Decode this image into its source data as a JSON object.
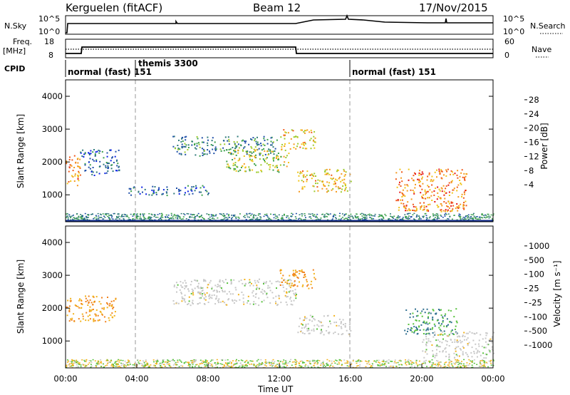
{
  "header": {
    "station": "Kerguelen (fitACF)",
    "beam": "Beam 12",
    "date": "17/Nov/2015"
  },
  "top_panels": {
    "nsky_label": "N.Sky",
    "nsky_ticks": [
      "10^5",
      "10^0"
    ],
    "nsearch_label": "N.Search",
    "nsearch_ticks": [
      "10^5",
      "10^0"
    ],
    "freq_label": "Freq.",
    "freq_unit": "[MHz]",
    "freq_ticks": [
      "18",
      "8"
    ],
    "nave_label": "Nave",
    "nave_ticks": [
      "60",
      "0"
    ],
    "cpid_label": "CPID",
    "cpid_segments": [
      {
        "label": "normal (fast) 151",
        "start_hour": 0
      },
      {
        "label": "themis 3300",
        "start_hour": 4
      },
      {
        "label": "normal (fast) 151",
        "start_hour": 16
      }
    ]
  },
  "x_axis": {
    "label": "Time UT",
    "ticks": [
      "00:00",
      "04:00",
      "08:00",
      "12:00",
      "16:00",
      "20:00",
      "00:00"
    ]
  },
  "chart_data": [
    {
      "type": "heatmap",
      "name": "power",
      "ylabel": "Slant Range [km]",
      "ylim": [
        180,
        4500
      ],
      "yticks": [
        "1000",
        "2000",
        "3000",
        "4000"
      ],
      "xlim_hours": [
        0,
        24
      ],
      "colorbar": {
        "label": "Power [dB]",
        "ticks": [
          "28",
          "24",
          "20",
          "16",
          "12",
          "8",
          "4"
        ],
        "colors": [
          "#0a22e6",
          "#1f4fa8",
          "#2f7a7a",
          "#3aa04a",
          "#9ecb2e",
          "#f0c419",
          "#f59a1f",
          "#f05a1a",
          "#e61414"
        ]
      },
      "features": [
        {
          "hours": [
            0.0,
            0.8
          ],
          "range_km": [
            1300,
            2300
          ],
          "level": 28
        },
        {
          "hours": [
            0.8,
            3.0
          ],
          "range_km": [
            1600,
            2400
          ],
          "level": 8
        },
        {
          "hours": [
            3.5,
            8.0
          ],
          "range_km": [
            1000,
            1300
          ],
          "level": 8
        },
        {
          "hours": [
            6.0,
            12.0
          ],
          "range_km": [
            2200,
            2800
          ],
          "level": 12
        },
        {
          "hours": [
            9.0,
            12.5
          ],
          "range_km": [
            1700,
            2400
          ],
          "level": 20
        },
        {
          "hours": [
            12.0,
            14.0
          ],
          "range_km": [
            2400,
            3000
          ],
          "level": 24
        },
        {
          "hours": [
            13.0,
            16.0
          ],
          "range_km": [
            1100,
            1800
          ],
          "level": 24
        },
        {
          "hours": [
            18.5,
            22.5
          ],
          "range_km": [
            500,
            1800
          ],
          "level": 28
        }
      ]
    },
    {
      "type": "heatmap",
      "name": "velocity",
      "ylabel": "Slant Range [km]",
      "ylim": [
        180,
        4500
      ],
      "yticks": [
        "1000",
        "2000",
        "3000",
        "4000"
      ],
      "xlim_hours": [
        0,
        24
      ],
      "colorbar": {
        "label": "Velocity [m s⁻¹]",
        "ticks": [
          "1000",
          "500",
          "100",
          "25",
          "-25",
          "-100",
          "-500",
          "-1000"
        ],
        "colors": [
          "#1a3fb0",
          "#2f6f8f",
          "#3a8f5f",
          "#55c13a",
          "#c8c8c8",
          "#f2b21c",
          "#f0821c",
          "#e64a12",
          "#e61414"
        ]
      },
      "features": [
        {
          "hours": [
            0.0,
            2.8
          ],
          "range_km": [
            1600,
            2400
          ],
          "velocity": -100
        },
        {
          "hours": [
            6.0,
            13.0
          ],
          "range_km": [
            2100,
            2900
          ],
          "velocity": 0
        },
        {
          "hours": [
            12.0,
            14.0
          ],
          "range_km": [
            2600,
            3200
          ],
          "velocity": -100
        },
        {
          "hours": [
            13.0,
            16.0
          ],
          "range_km": [
            1200,
            1800
          ],
          "velocity": 0
        },
        {
          "hours": [
            19.0,
            22.0
          ],
          "range_km": [
            1200,
            2000
          ],
          "velocity": 100
        },
        {
          "hours": [
            20.0,
            24.0
          ],
          "range_km": [
            500,
            1300
          ],
          "velocity": 0
        }
      ]
    }
  ]
}
